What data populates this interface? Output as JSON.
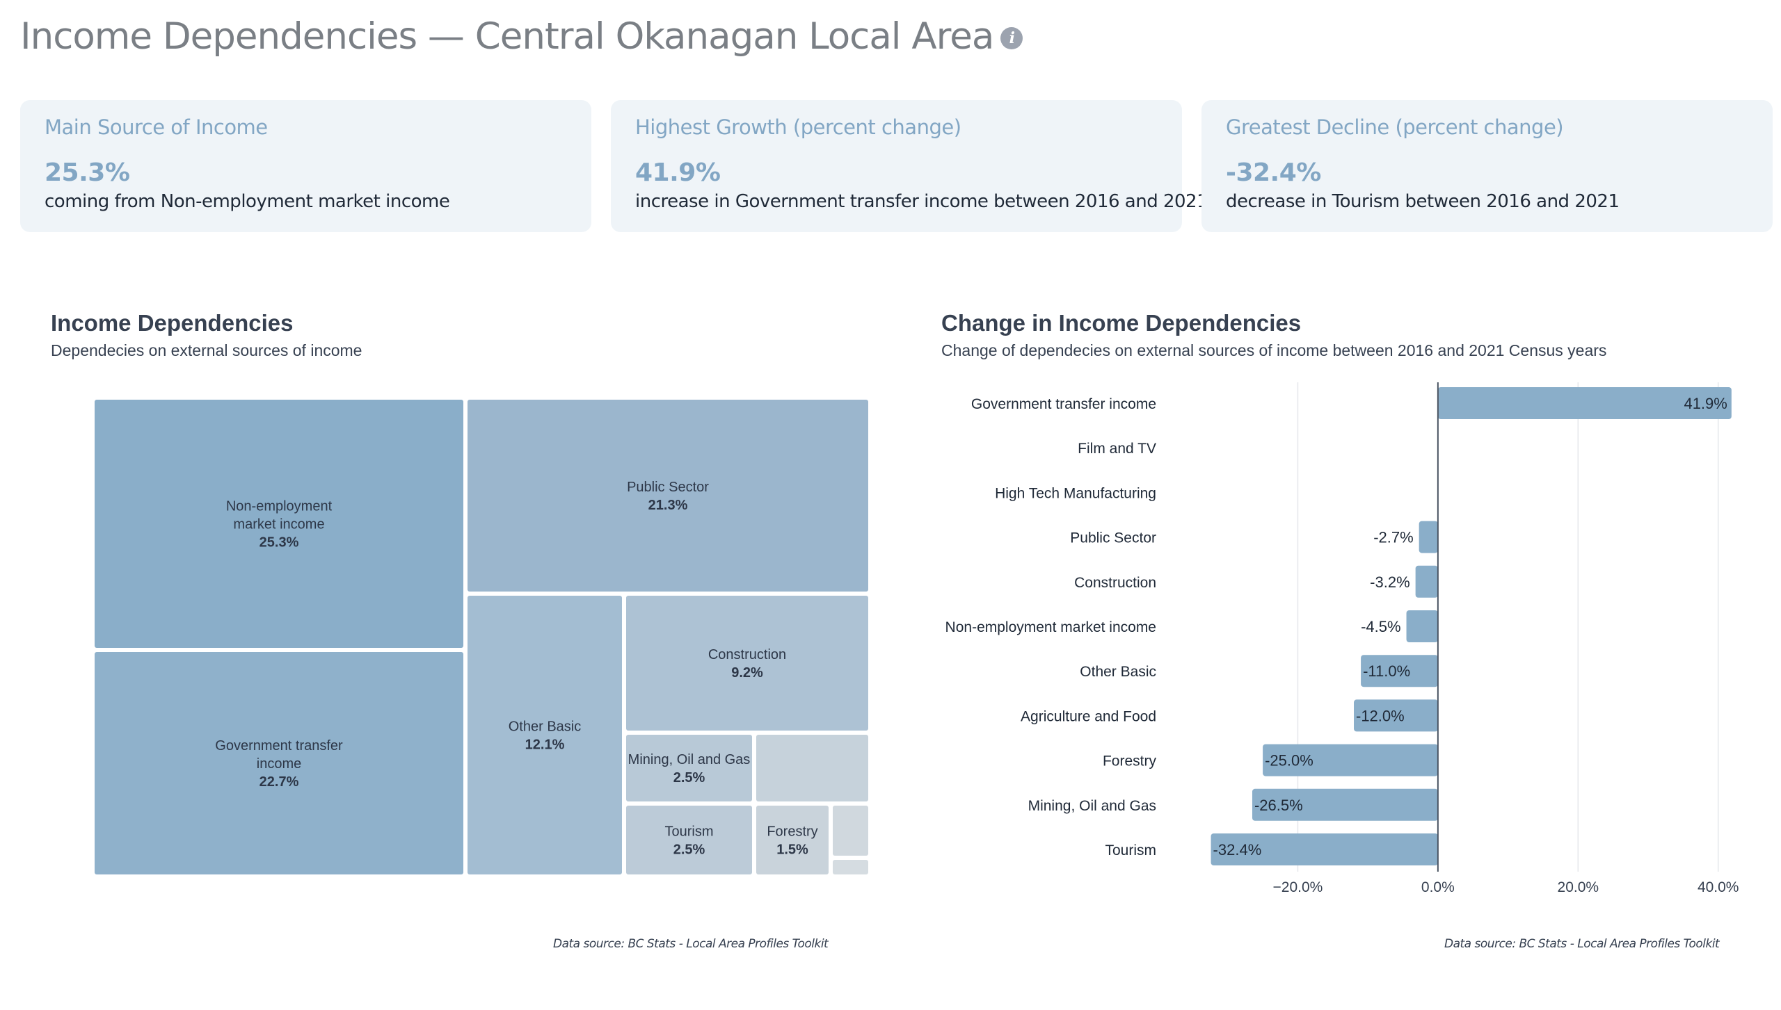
{
  "page": {
    "title": "Income Dependencies — Central Okanagan Local Area",
    "info_icon": "info-icon"
  },
  "cards": [
    {
      "label": "Main Source of Income",
      "value": "25.3%",
      "description": "coming from Non-employment market income"
    },
    {
      "label": "Highest Growth (percent change)",
      "value": "41.9%",
      "description": "increase in Government transfer income between 2016 and 2021"
    },
    {
      "label": "Greatest Decline (percent change)",
      "value": "-32.4%",
      "description": "decrease in Tourism between 2016 and 2021"
    }
  ],
  "colors": {
    "accent": "#82a6c4",
    "card_bg": "#eff4f8",
    "bar": "#8aaec9",
    "zero_line": "#4b5563"
  },
  "treemap_panel": {
    "title": "Income Dependencies",
    "subtitle": "Dependecies on external sources of income",
    "source": "Data source: BC Stats - Local Area Profiles Toolkit"
  },
  "bar_panel": {
    "title": "Change in Income Dependencies",
    "subtitle": "Change of dependecies on external sources of income between 2016 and 2021 Census years",
    "source": "Data source: BC Stats - Local Area Profiles Toolkit"
  },
  "chart_data": [
    {
      "type": "treemap",
      "title": "Income Dependencies",
      "items": [
        {
          "name": "Non-employment market income",
          "value": 25.3,
          "label_lines": [
            "Non-employment",
            "market income"
          ],
          "value_label": "25.3%",
          "color": "#8aaec9"
        },
        {
          "name": "Government transfer income",
          "value": 22.7,
          "label_lines": [
            "Government transfer",
            "income"
          ],
          "value_label": "22.7%",
          "color": "#8fb1cb"
        },
        {
          "name": "Public Sector",
          "value": 21.3,
          "label_lines": [
            "Public Sector"
          ],
          "value_label": "21.3%",
          "color": "#9bb6cd"
        },
        {
          "name": "Other Basic",
          "value": 12.1,
          "label_lines": [
            "Other Basic"
          ],
          "value_label": "12.1%",
          "color": "#a3bdd2"
        },
        {
          "name": "Construction",
          "value": 9.2,
          "label_lines": [
            "Construction"
          ],
          "value_label": "9.2%",
          "color": "#adc2d4"
        },
        {
          "name": "Mining, Oil and Gas",
          "value": 2.5,
          "label_lines": [
            "Mining, Oil and Gas"
          ],
          "value_label": "2.5%",
          "color": "#b8c9d7"
        },
        {
          "name": "Tourism",
          "value": 2.5,
          "label_lines": [
            "Tourism"
          ],
          "value_label": "2.5%",
          "color": "#bccbd8"
        },
        {
          "name": "Unlabeled A",
          "value": 2.3,
          "label_lines": [],
          "value_label": "",
          "color": "#c6d2db"
        },
        {
          "name": "Forestry",
          "value": 1.5,
          "label_lines": [
            "Forestry"
          ],
          "value_label": "1.5%",
          "color": "#c9d3db"
        },
        {
          "name": "Unlabeled B",
          "value": 0.6,
          "label_lines": [],
          "value_label": "",
          "color": "#d0d8de"
        },
        {
          "name": "Unlabeled C",
          "value": 0.2,
          "label_lines": [],
          "value_label": "",
          "color": "#d5dce1"
        }
      ]
    },
    {
      "type": "bar",
      "orientation": "horizontal",
      "title": "Change in Income Dependencies",
      "categories": [
        "Government transfer income",
        "Film and TV",
        "High Tech Manufacturing",
        "Public Sector",
        "Construction",
        "Non-employment market income",
        "Other Basic",
        "Agriculture and Food",
        "Forestry",
        "Mining, Oil and Gas",
        "Tourism"
      ],
      "values": [
        41.9,
        null,
        null,
        -2.7,
        -3.2,
        -4.5,
        -11.0,
        -12.0,
        -25.0,
        -26.5,
        -32.4
      ],
      "value_labels": [
        "41.9%",
        "",
        "",
        "-2.7%",
        "-3.2%",
        "-4.5%",
        "-11.0%",
        "-12.0%",
        "-25.0%",
        "-26.5%",
        "-32.4%"
      ],
      "xlim": [
        -40.3,
        44
      ],
      "xticks": [
        -20,
        0,
        20,
        40
      ],
      "xtick_labels": [
        "−20.0%",
        "0.0%",
        "20.0%",
        "40.0%"
      ],
      "grid": true,
      "xlabel": "",
      "ylabel": ""
    }
  ]
}
